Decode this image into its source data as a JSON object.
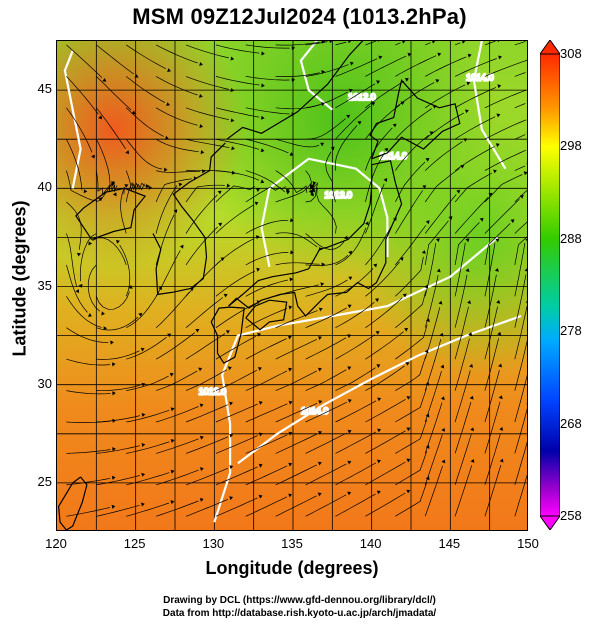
{
  "title": "MSM 09Z12Jul2024 (1013.2hPa)",
  "axes": {
    "xlabel": "Longitude (degrees)",
    "ylabel": "Latitude  (degrees)",
    "x_ticks": [
      "120",
      "125",
      "130",
      "135",
      "140",
      "145",
      "150"
    ],
    "y_ticks": [
      "25",
      "30",
      "35",
      "40",
      "45"
    ]
  },
  "map_extent": {
    "lon_range": [
      120,
      150
    ],
    "lat_range": [
      22.5,
      47.5
    ]
  },
  "colorbar": {
    "range": [
      258,
      308
    ],
    "labels": [
      "308",
      "298",
      "288",
      "278",
      "268",
      "258"
    ],
    "colors": [
      "#ff0000",
      "#ff9900",
      "#ffff00",
      "#66cc00",
      "#00cc66",
      "#00bbff",
      "#0066ff",
      "#0000cc",
      "#6600cc",
      "#ff00ff"
    ]
  },
  "isobars": {
    "labels": [
      "1014.0",
      "1012.0",
      "1013.0",
      "1012.0",
      "1014.0",
      "1014.0"
    ]
  },
  "credits": {
    "line1": "Drawing by DCL (https://www.gfd-dennou.org/library/dcl/)",
    "line2": "Data from http://database.rish.kyoto-u.ac.jp/arch/jmadata/"
  }
}
